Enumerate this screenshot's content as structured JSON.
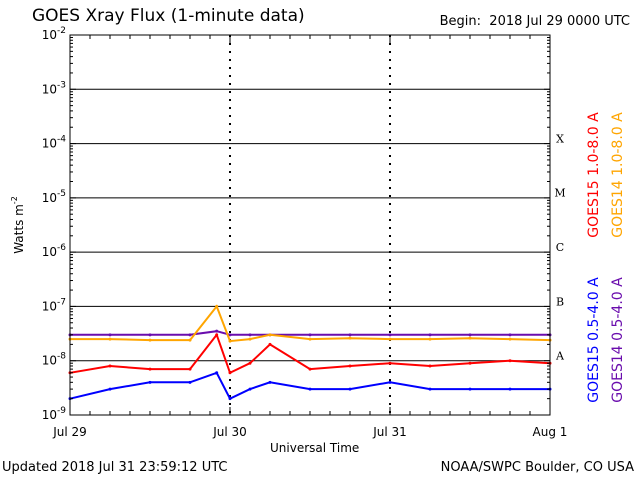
{
  "header": {
    "title": "GOES Xray Flux (1-minute data)",
    "begin_label": "Begin:",
    "begin_value": "2018 Jul 29 0000 UTC"
  },
  "footer": {
    "updated": "Updated 2018 Jul 31 23:59:12 UTC",
    "credit": "NOAA/SWPC Boulder, CO USA"
  },
  "chart_data": {
    "type": "line",
    "title": "GOES Xray Flux (1-minute data)",
    "xlabel": "Universal Time",
    "ylabel": "Watts m",
    "ylabel_superscript": "-2",
    "yscale": "log",
    "ylim": [
      1e-09,
      0.01
    ],
    "xlim": [
      "2018-07-29 00:00",
      "2018-08-01 00:00"
    ],
    "x_ticks": [
      "Jul 29",
      "Jul 30",
      "Jul 31",
      "Aug 1"
    ],
    "y_ticks": [
      {
        "base": "10",
        "exp": "-9"
      },
      {
        "base": "10",
        "exp": "-8"
      },
      {
        "base": "10",
        "exp": "-7"
      },
      {
        "base": "10",
        "exp": "-6"
      },
      {
        "base": "10",
        "exp": "-5"
      },
      {
        "base": "10",
        "exp": "-4"
      },
      {
        "base": "10",
        "exp": "-3"
      },
      {
        "base": "10",
        "exp": "-2"
      }
    ],
    "flare_classes": [
      "A",
      "B",
      "C",
      "M",
      "X"
    ],
    "grid": true,
    "series": [
      {
        "name": "GOES15 1.0-8.0 A",
        "color": "#ff0000",
        "band": "long",
        "x": [
          "2018-07-29 00:00",
          "2018-07-29 06:00",
          "2018-07-29 12:00",
          "2018-07-29 18:00",
          "2018-07-29 22:00",
          "2018-07-30 00:00",
          "2018-07-30 03:00",
          "2018-07-30 06:00",
          "2018-07-30 12:00",
          "2018-07-30 18:00",
          "2018-07-31 00:00",
          "2018-07-31 06:00",
          "2018-07-31 12:00",
          "2018-07-31 18:00",
          "2018-08-01 00:00"
        ],
        "values": [
          6e-09,
          8e-09,
          7e-09,
          7e-09,
          3e-08,
          6e-09,
          9e-09,
          2e-08,
          7e-09,
          8e-09,
          9e-09,
          8e-09,
          9e-09,
          1e-08,
          9e-09
        ]
      },
      {
        "name": "GOES14 1.0-8.0 A",
        "color": "#ffa500",
        "band": "long",
        "x": [
          "2018-07-29 00:00",
          "2018-07-29 06:00",
          "2018-07-29 12:00",
          "2018-07-29 18:00",
          "2018-07-29 22:00",
          "2018-07-30 00:00",
          "2018-07-30 03:00",
          "2018-07-30 06:00",
          "2018-07-30 12:00",
          "2018-07-30 18:00",
          "2018-07-31 00:00",
          "2018-07-31 06:00",
          "2018-07-31 12:00",
          "2018-07-31 18:00",
          "2018-08-01 00:00"
        ],
        "values": [
          2.5e-08,
          2.5e-08,
          2.4e-08,
          2.4e-08,
          1e-07,
          2.3e-08,
          2.5e-08,
          3e-08,
          2.5e-08,
          2.6e-08,
          2.5e-08,
          2.5e-08,
          2.6e-08,
          2.5e-08,
          2.4e-08
        ]
      },
      {
        "name": "GOES15 0.5-4.0 A",
        "color": "#0000ff",
        "band": "short",
        "x": [
          "2018-07-29 00:00",
          "2018-07-29 06:00",
          "2018-07-29 12:00",
          "2018-07-29 18:00",
          "2018-07-29 22:00",
          "2018-07-30 00:00",
          "2018-07-30 03:00",
          "2018-07-30 06:00",
          "2018-07-30 12:00",
          "2018-07-30 18:00",
          "2018-07-31 00:00",
          "2018-07-31 06:00",
          "2018-07-31 12:00",
          "2018-07-31 18:00",
          "2018-08-01 00:00"
        ],
        "values": [
          2e-09,
          3e-09,
          4e-09,
          4e-09,
          6e-09,
          2e-09,
          3e-09,
          4e-09,
          3e-09,
          3e-09,
          4e-09,
          3e-09,
          3e-09,
          3e-09,
          3e-09
        ]
      },
      {
        "name": "GOES14 0.5-4.0 A",
        "color": "#6a0dad",
        "band": "short",
        "x": [
          "2018-07-29 00:00",
          "2018-07-29 06:00",
          "2018-07-29 12:00",
          "2018-07-29 18:00",
          "2018-07-29 22:00",
          "2018-07-30 00:00",
          "2018-07-30 03:00",
          "2018-07-30 06:00",
          "2018-07-30 12:00",
          "2018-07-30 18:00",
          "2018-07-31 00:00",
          "2018-07-31 06:00",
          "2018-07-31 12:00",
          "2018-07-31 18:00",
          "2018-08-01 00:00"
        ],
        "values": [
          3e-08,
          3e-08,
          3e-08,
          3e-08,
          3.5e-08,
          3e-08,
          3e-08,
          3e-08,
          3e-08,
          3e-08,
          3e-08,
          3e-08,
          3e-08,
          3e-08,
          3e-08
        ]
      }
    ]
  }
}
